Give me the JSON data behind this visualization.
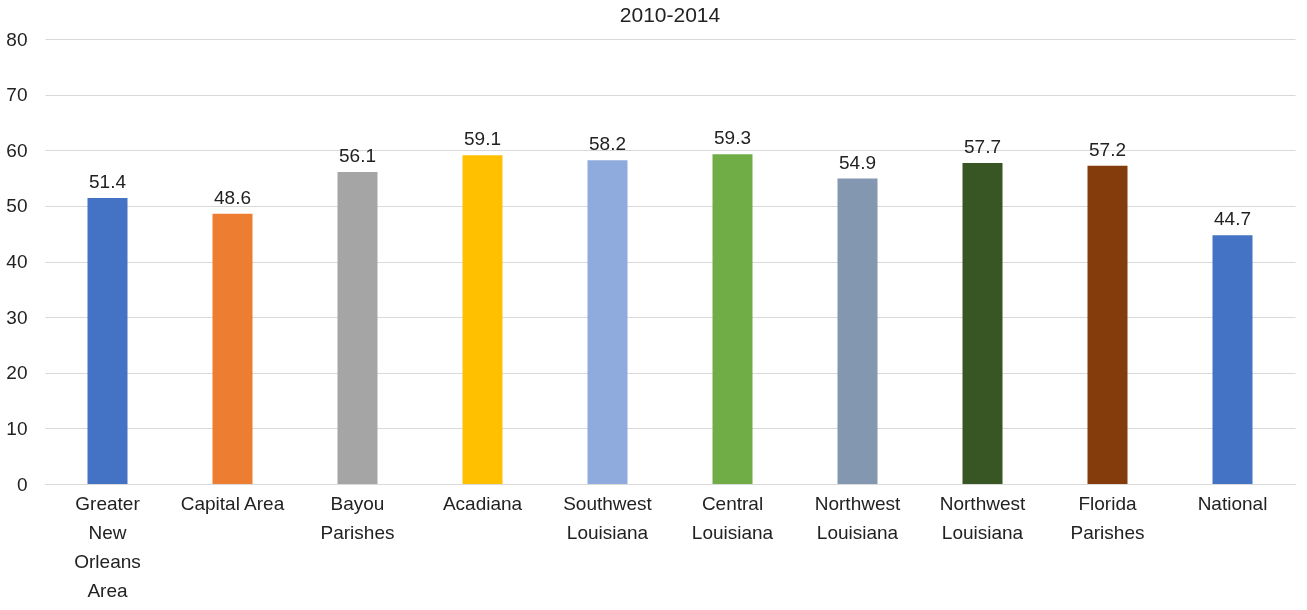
{
  "chart_data": {
    "type": "bar",
    "title": "2010-2014",
    "categories": [
      "Greater New Orleans Area",
      "Capital Area",
      "Bayou Parishes",
      "Acadiana",
      "Southwest Louisiana",
      "Central Louisiana",
      "Northwest Louisiana",
      "Northwest Louisiana",
      "Florida Parishes",
      "National"
    ],
    "values": [
      51.4,
      48.6,
      56.1,
      59.1,
      58.2,
      59.3,
      54.9,
      57.7,
      57.2,
      44.7
    ],
    "colors": [
      "#4472c4",
      "#ed7d31",
      "#a5a5a5",
      "#ffc000",
      "#8faadc",
      "#70ad47",
      "#8497b0",
      "#375623",
      "#843c0c",
      "#4472c4"
    ],
    "ylim": [
      0,
      80
    ],
    "yticks": [
      0,
      10,
      20,
      30,
      40,
      50,
      60,
      70,
      80
    ],
    "grid": "y",
    "data_labels": true
  }
}
